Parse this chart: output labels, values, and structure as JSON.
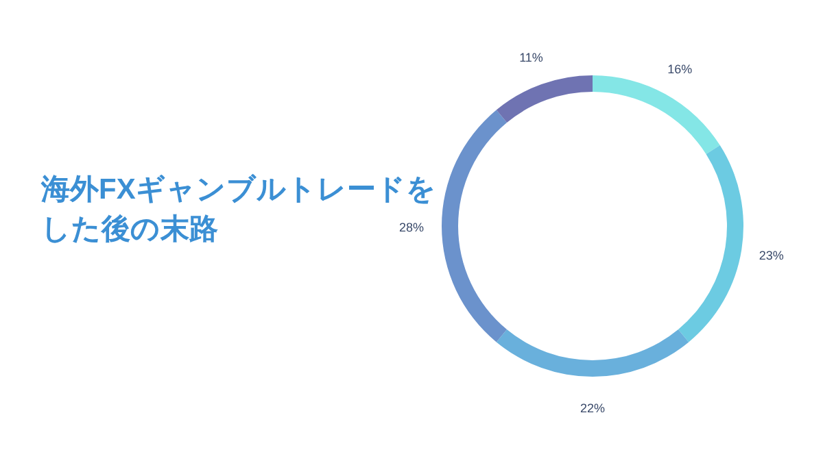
{
  "chart_data": {
    "type": "donut",
    "title": "海外FXギャンブルトレードをした後の末路",
    "categories": [
      null,
      null,
      null,
      null,
      null
    ],
    "values": [
      16,
      23,
      22,
      28,
      11
    ],
    "value_labels": [
      "16%",
      "23%",
      "22%",
      "28%",
      "11%"
    ],
    "colors": [
      "#84e6e6",
      "#6ccbe2",
      "#69b0dc",
      "#6b92cc",
      "#6f73b2"
    ]
  }
}
